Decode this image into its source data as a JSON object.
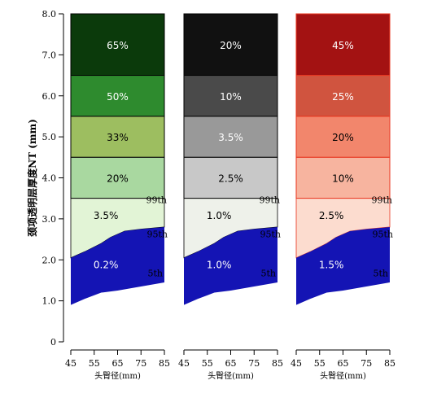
{
  "chart_data": {
    "type": "area",
    "ylabel": "颈项透明层厚度NT (mm)",
    "xlabel": "头臀径(mm)",
    "xlim": [
      45,
      85
    ],
    "ylim": [
      0,
      8
    ],
    "xticks": [
      45,
      55,
      65,
      75,
      85
    ],
    "yticks": [
      "0",
      "1.0",
      "2.0",
      "3.0",
      "4.0",
      "5.0",
      "6.0",
      "7.0",
      "8.0"
    ],
    "curve_labels": [
      "99th",
      "95th",
      "5th"
    ],
    "curves": {
      "p5": [
        [
          45,
          0.9
        ],
        [
          51,
          1.05
        ],
        [
          58,
          1.2
        ],
        [
          65,
          1.25
        ],
        [
          75,
          1.35
        ],
        [
          85,
          1.45
        ]
      ],
      "p95": [
        [
          45,
          2.05
        ],
        [
          51,
          2.2
        ],
        [
          58,
          2.4
        ],
        [
          62,
          2.55
        ],
        [
          68,
          2.7
        ],
        [
          75,
          2.75
        ],
        [
          85,
          2.8
        ]
      ],
      "p99": [
        [
          45,
          3.5
        ],
        [
          85,
          3.5
        ]
      ]
    },
    "bands": [
      {
        "lo": 6.5,
        "hi": 8.0
      },
      {
        "lo": 5.5,
        "hi": 6.5
      },
      {
        "lo": 4.5,
        "hi": 5.5
      },
      {
        "lo": 3.5,
        "hi": 4.5
      }
    ],
    "panels": [
      {
        "colors": {
          "bands": [
            "#0b3a0b",
            "#2e8b2e",
            "#9dbe60",
            "#a9d8a0"
          ],
          "above95": "#e2f4d6",
          "below95": "#1414b4",
          "border": "#000000"
        },
        "bands": [
          "65%",
          "50%",
          "33%",
          "20%"
        ],
        "p95_to_p99": "3.5%",
        "p5_to_p95": "0.2%",
        "band_text_colors": [
          "#ffffff",
          "#ffffff",
          "#000000",
          "#000000"
        ]
      },
      {
        "colors": {
          "bands": [
            "#111111",
            "#4a4a4a",
            "#999999",
            "#c8c8c8"
          ],
          "above95": "#eef1ea",
          "below95": "#1414b4",
          "border": "#000000"
        },
        "bands": [
          "20%",
          "10%",
          "3.5%",
          "2.5%"
        ],
        "p95_to_p99": "1.0%",
        "p5_to_p95": "1.0%",
        "band_text_colors": [
          "#ffffff",
          "#ffffff",
          "#ffffff",
          "#000000"
        ]
      },
      {
        "colors": {
          "bands": [
            "#a31212",
            "#d0543f",
            "#f2866c",
            "#f7b49f"
          ],
          "above95": "#fcdccf",
          "below95": "#1414b4",
          "border": "#e8341e"
        },
        "bands": [
          "45%",
          "25%",
          "20%",
          "10%"
        ],
        "p95_to_p99": "2.5%",
        "p5_to_p95": "1.5%",
        "band_text_colors": [
          "#ffffff",
          "#ffffff",
          "#000000",
          "#000000"
        ]
      }
    ]
  }
}
